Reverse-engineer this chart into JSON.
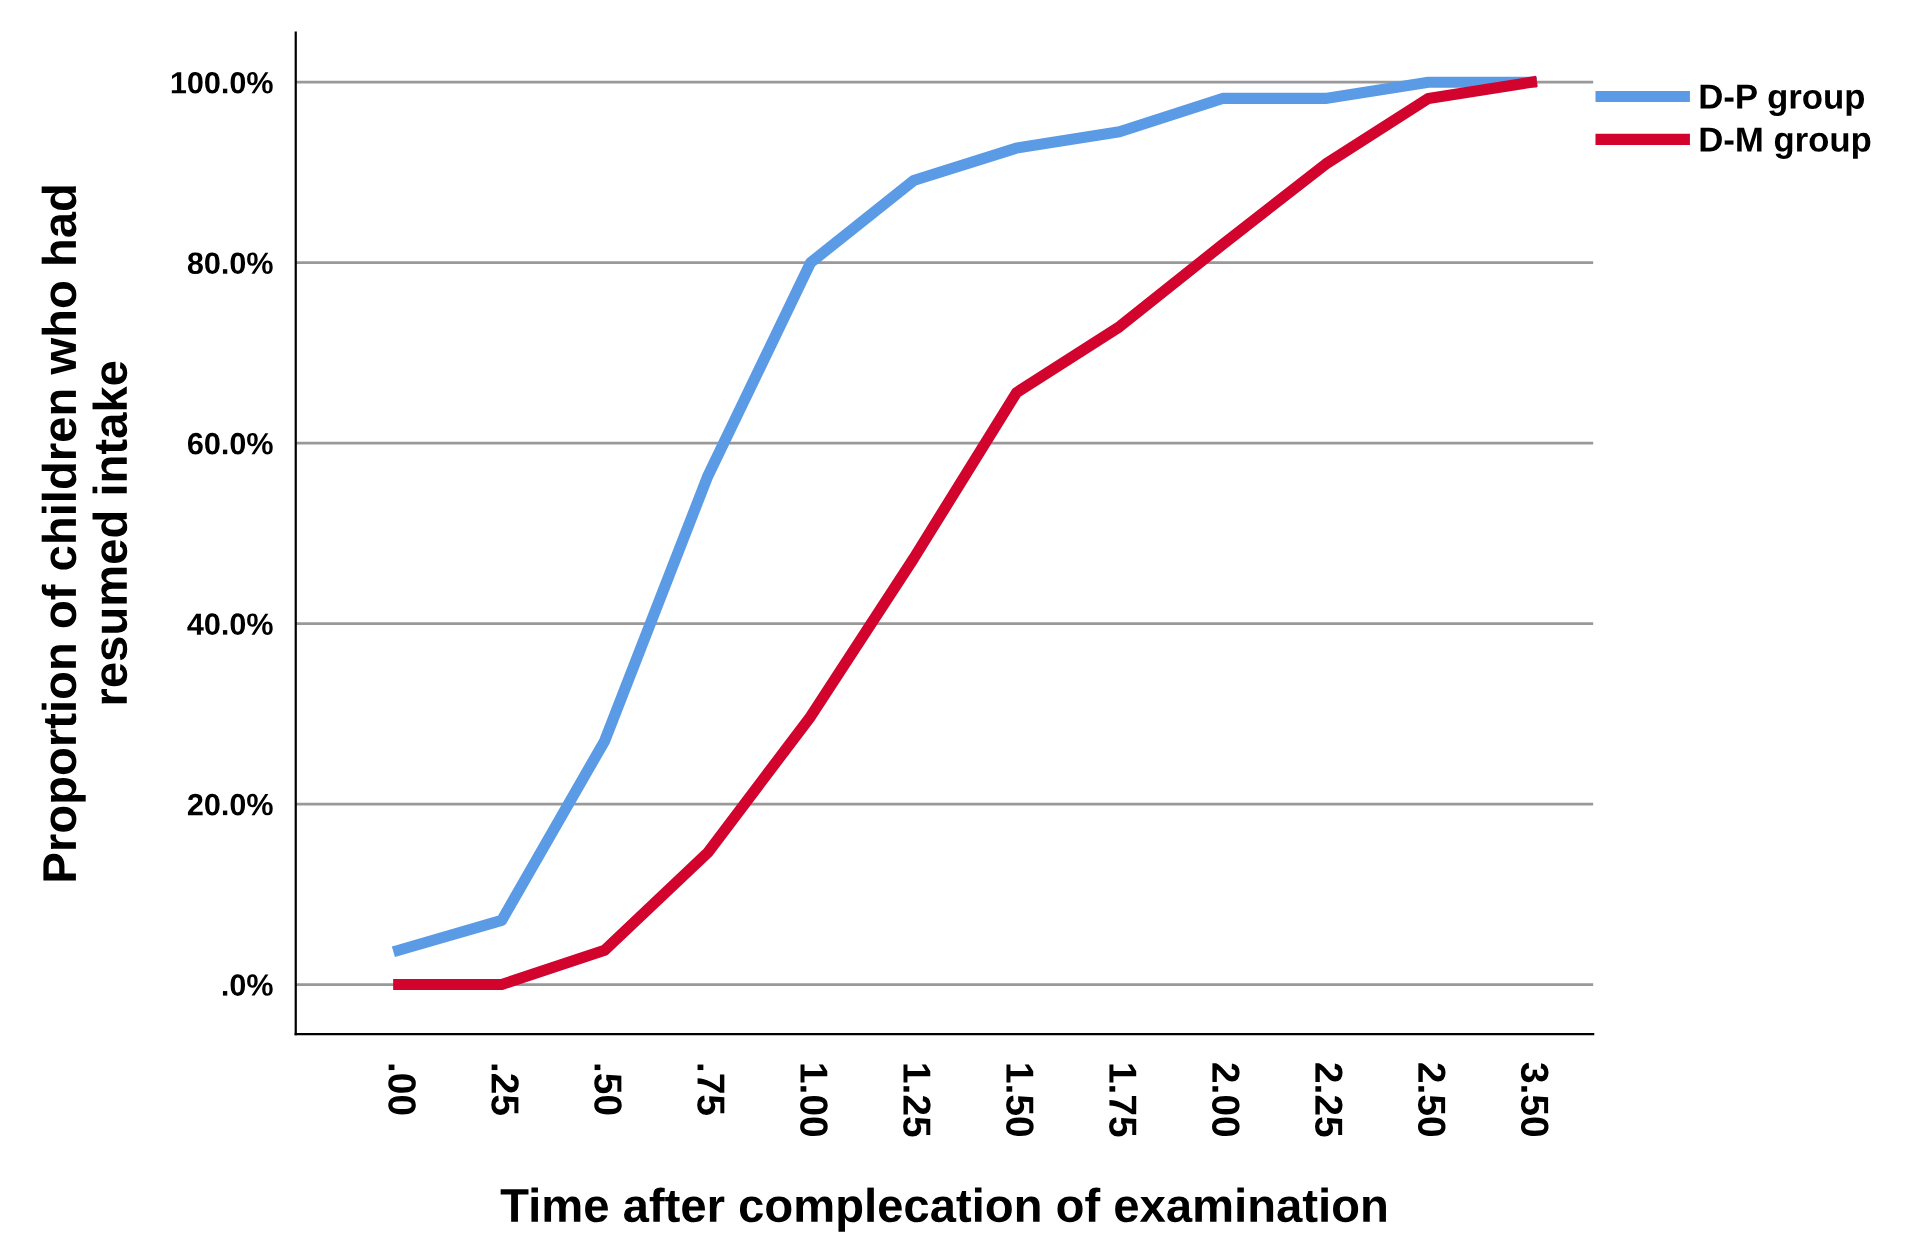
{
  "chart_data": {
    "type": "line",
    "xlabel": "Time after complecation of examination",
    "ylabel": "Proportion of children who had\nresumed intake",
    "categories": [
      ".00",
      ".25",
      ".50",
      ".75",
      "1.00",
      "1.25",
      "1.50",
      "1.75",
      "2.00",
      "2.25",
      "2.50",
      "3.50"
    ],
    "series": [
      {
        "name": "D-P group",
        "color": "#5b9be6",
        "values": [
          3.8,
          7.1,
          27,
          56.3,
          80,
          89.1,
          92.7,
          94.5,
          98.2,
          98.2,
          100,
          100
        ]
      },
      {
        "name": "D-M group",
        "color": "#d2042d",
        "values": [
          0,
          0,
          3.8,
          14.6,
          29.7,
          47.2,
          65.6,
          72.9,
          82,
          90.9,
          98.2,
          100
        ]
      }
    ],
    "ylim": [
      -5.5,
      105.5
    ],
    "yticks": [
      {
        "value": 0,
        "label": ".0%"
      },
      {
        "value": 20,
        "label": "20.0%"
      },
      {
        "value": 40,
        "label": "40.0%"
      },
      {
        "value": 60,
        "label": "60.0%"
      },
      {
        "value": 80,
        "label": "80.0%"
      },
      {
        "value": 100,
        "label": "100.0%"
      }
    ],
    "grid": "y",
    "legend": "top right",
    "marker": "none",
    "line_style": "solid"
  }
}
